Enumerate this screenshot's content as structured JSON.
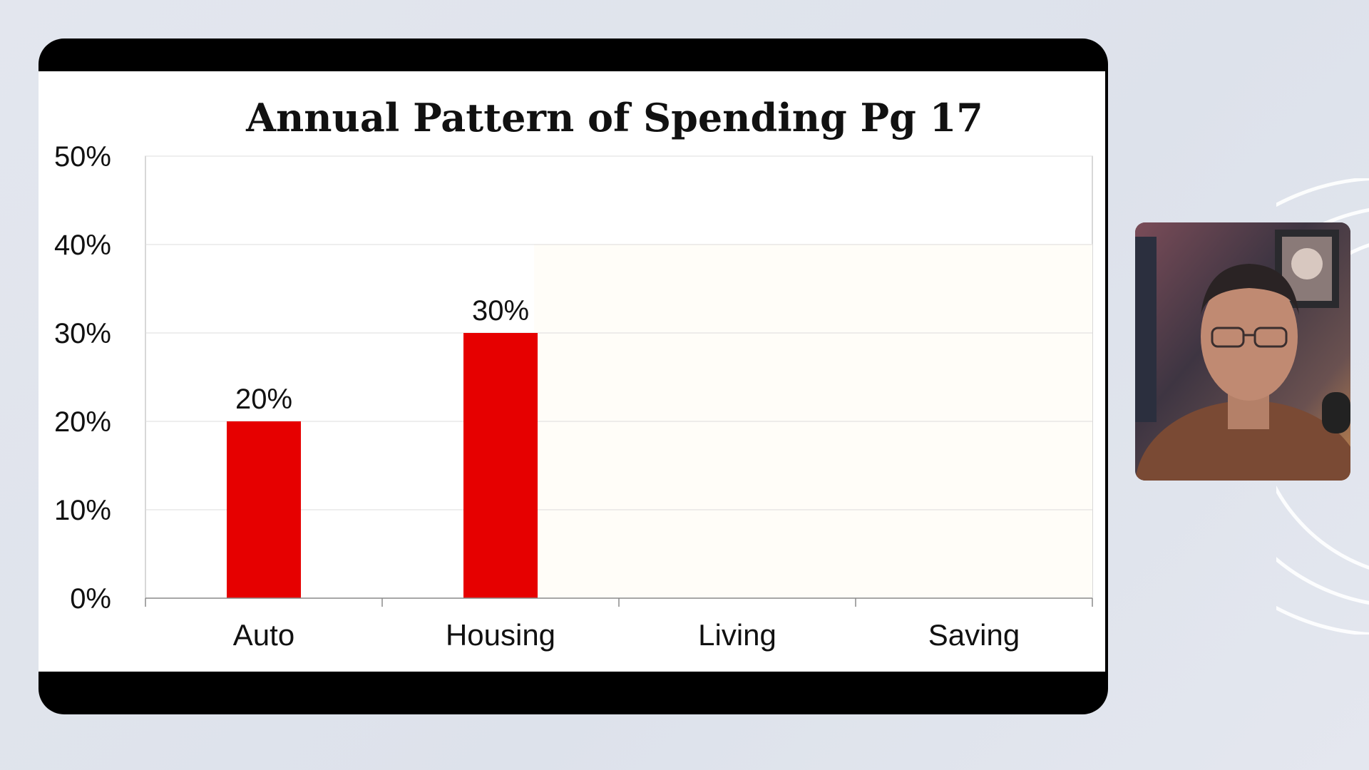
{
  "chart_data": {
    "type": "bar",
    "title": "Annual Pattern of Spending Pg 17",
    "categories": [
      "Auto",
      "Housing",
      "Living",
      "Saving"
    ],
    "values": [
      20,
      30,
      null,
      null
    ],
    "data_labels": [
      "20%",
      "30%",
      "",
      ""
    ],
    "y_tick_labels": [
      "50%",
      "40%",
      "30%",
      "20%",
      "10%",
      "0%"
    ],
    "y_ticks": [
      50,
      40,
      30,
      20,
      10,
      0
    ],
    "ylim": [
      0,
      50
    ],
    "xlabel": "",
    "ylabel": "",
    "grid": true,
    "bar_color": "#e60000"
  },
  "presenter": {
    "camera_icon": "person-video-feed"
  }
}
